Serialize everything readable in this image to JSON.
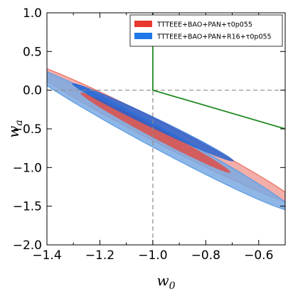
{
  "chart_data": {
    "type": "contour",
    "title": "",
    "xlabel": "w",
    "xlabel_sub": "0",
    "ylabel": "w",
    "ylabel_sub": "a",
    "xlim": [
      -1.4,
      -0.5
    ],
    "ylim": [
      -2.0,
      1.0
    ],
    "xticks": [
      -1.4,
      -1.2,
      -1.0,
      -0.8,
      -0.6
    ],
    "xtick_labels": [
      "−1.4",
      "−1.2",
      "−1.0",
      "−0.8",
      "−0.6"
    ],
    "yticks": [
      -2.0,
      -1.5,
      -1.0,
      -0.5,
      0.0,
      0.5,
      1.0
    ],
    "ytick_labels": [
      "−2.0",
      "−1.5",
      "−1.0",
      "−0.5",
      "0.0",
      "0.5",
      "1.0"
    ],
    "reference_lines": {
      "x": -1.0,
      "y": 0.0,
      "style": "dashed"
    },
    "boundary_line": {
      "color": "#228b22",
      "points": [
        [
          -1.0,
          1.0
        ],
        [
          -1.0,
          0.0
        ],
        [
          -0.5,
          -0.5
        ]
      ]
    },
    "legend_position": "top-right",
    "series": [
      {
        "name": "TTTEEE+BAO+PAN+τ0p055",
        "color": "#e8392f",
        "fill_outer": "#f2a09a",
        "stroke_outer": "#e8705f",
        "fill_inner": "#e24a3e",
        "contours": [
          {
            "level": "95%",
            "center": [
              -0.965,
              -0.565
            ],
            "angle_deg": -60.8,
            "semi_major": 1.045,
            "semi_minor": 0.073
          },
          {
            "level": "68%",
            "center": [
              -0.99,
              -0.55
            ],
            "angle_deg": -61.5,
            "semi_major": 0.59,
            "semi_minor": 0.038
          }
        ]
      },
      {
        "name": "TTTEEE+BAO+PAN+R16+τ0p055",
        "color": "#1f78e8",
        "fill_outer": "#7aaae3",
        "stroke_outer": "#5b9be3",
        "fill_inner": "#1a5fd3",
        "contours": [
          {
            "level": "95%",
            "center": [
              -0.985,
              -0.61
            ],
            "angle_deg": -61.8,
            "semi_major": 1.075,
            "semi_minor": 0.073
          },
          {
            "level": "68%",
            "center": [
              -1.0,
              -0.415
            ],
            "angle_deg": -59.0,
            "semi_major": 0.59,
            "semi_minor": 0.04
          }
        ]
      }
    ]
  }
}
